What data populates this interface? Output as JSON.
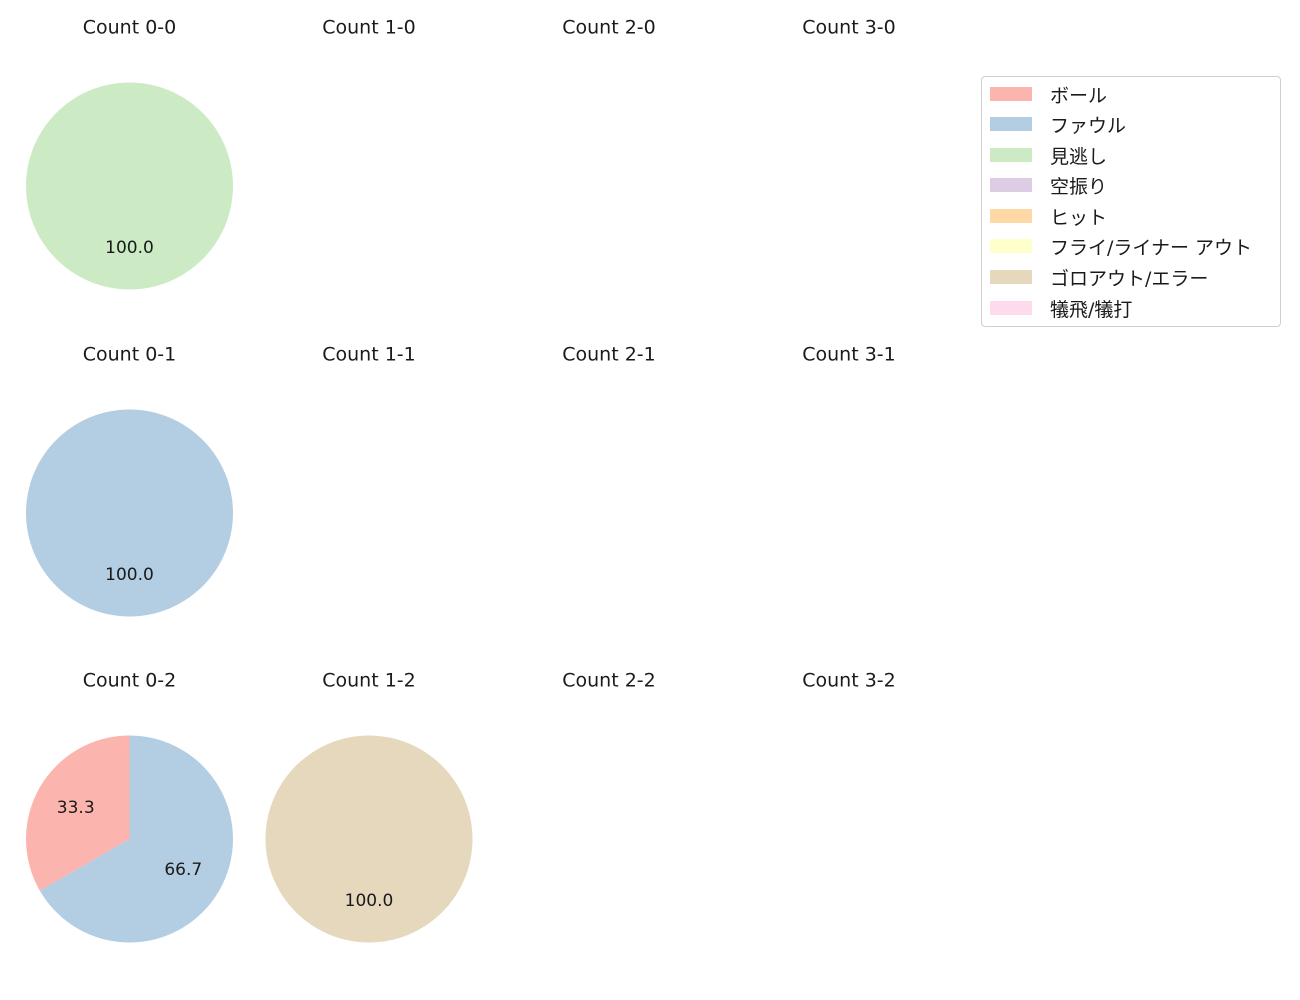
{
  "chart_data": {
    "type": "pie",
    "categories": [
      "ボール",
      "ファウル",
      "見逃し",
      "空振り",
      "ヒット",
      "フライ/ライナー アウト",
      "ゴロアウト/エラー",
      "犠飛/犠打"
    ],
    "colors": [
      "#fbb4ae",
      "#b3cde3",
      "#ccebc5",
      "#decbe4",
      "#fed9a6",
      "#ffffcc",
      "#e5d8bd",
      "#fddaec"
    ],
    "legend_position": "top-right",
    "panels": [
      {
        "title": "Count 0-0",
        "values": [
          0,
          0,
          1,
          0,
          0,
          0,
          0,
          0
        ],
        "labels": [
          "100.0"
        ]
      },
      {
        "title": "Count 1-0",
        "values": [
          0,
          0,
          0,
          0,
          0,
          0,
          0,
          0
        ],
        "labels": []
      },
      {
        "title": "Count 2-0",
        "values": [
          0,
          0,
          0,
          0,
          0,
          0,
          0,
          0
        ],
        "labels": []
      },
      {
        "title": "Count 3-0",
        "values": [
          0,
          0,
          0,
          0,
          0,
          0,
          0,
          0
        ],
        "labels": []
      },
      {
        "title": "Count 0-1",
        "values": [
          0,
          1,
          0,
          0,
          0,
          0,
          0,
          0
        ],
        "labels": [
          "100.0"
        ]
      },
      {
        "title": "Count 1-1",
        "values": [
          0,
          0,
          0,
          0,
          0,
          0,
          0,
          0
        ],
        "labels": []
      },
      {
        "title": "Count 2-1",
        "values": [
          0,
          0,
          0,
          0,
          0,
          0,
          0,
          0
        ],
        "labels": []
      },
      {
        "title": "Count 3-1",
        "values": [
          0,
          0,
          0,
          0,
          0,
          0,
          0,
          0
        ],
        "labels": []
      },
      {
        "title": "Count 0-2",
        "values": [
          1,
          2,
          0,
          0,
          0,
          0,
          0,
          0
        ],
        "labels": [
          "33.3",
          "66.7"
        ]
      },
      {
        "title": "Count 1-2",
        "values": [
          0,
          0,
          0,
          0,
          0,
          0,
          1,
          0
        ],
        "labels": [
          "100.0"
        ]
      },
      {
        "title": "Count 2-2",
        "values": [
          0,
          0,
          0,
          0,
          0,
          0,
          0,
          0
        ],
        "labels": []
      },
      {
        "title": "Count 3-2",
        "values": [
          0,
          0,
          0,
          0,
          0,
          0,
          0,
          0
        ],
        "labels": []
      }
    ]
  }
}
